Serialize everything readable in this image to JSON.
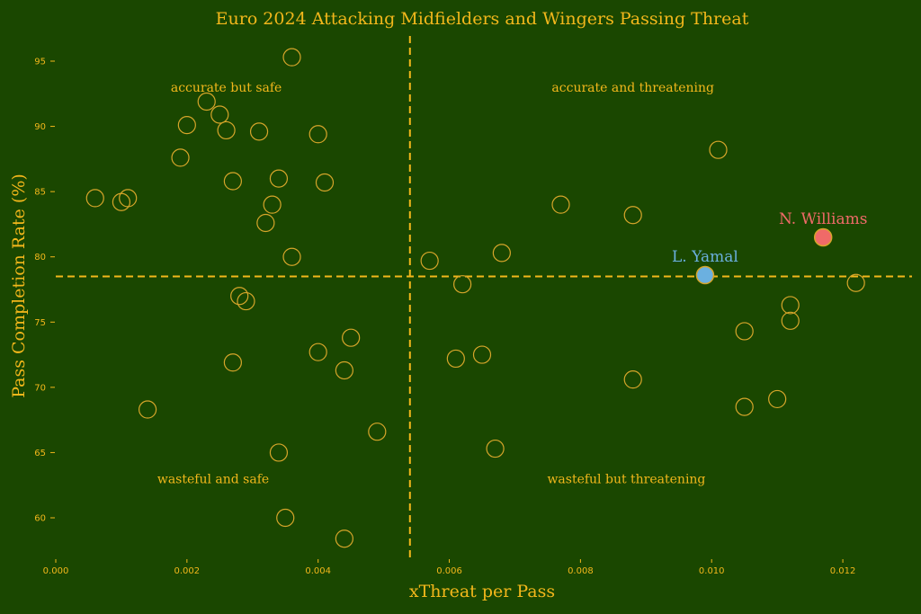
{
  "chart_data": {
    "type": "scatter",
    "title": "Euro 2024 Attacking Midfielders and Wingers Passing Threat",
    "xlabel": "xThreat per Pass",
    "ylabel": "Pass Completion Rate (%)",
    "xlim": [
      0,
      0.013
    ],
    "ylim": [
      56.5,
      97
    ],
    "xticks": [
      0.0,
      0.002,
      0.004,
      0.006,
      0.008,
      0.01,
      0.012
    ],
    "xtick_labels": [
      "0.000",
      "0.002",
      "0.004",
      "0.006",
      "0.008",
      "0.010",
      "0.012"
    ],
    "yticks": [
      60,
      65,
      70,
      75,
      80,
      85,
      90,
      95
    ],
    "ytick_labels": [
      "60",
      "65",
      "70",
      "75",
      "80",
      "85",
      "90",
      "95"
    ],
    "ref_lines": {
      "x": 0.0054,
      "y": 78.5
    },
    "quadrant_labels": [
      {
        "text": "accurate but safe",
        "x": 0.0026,
        "y": 93.0
      },
      {
        "text": "accurate and threatening",
        "x": 0.0088,
        "y": 93.0
      },
      {
        "text": "wasteful and safe",
        "x": 0.0024,
        "y": 63.0
      },
      {
        "text": "wasteful but threatening",
        "x": 0.0087,
        "y": 63.0
      }
    ],
    "points": [
      [
        0.0036,
        95.3
      ],
      [
        0.0023,
        91.9
      ],
      [
        0.0025,
        90.9
      ],
      [
        0.002,
        90.1
      ],
      [
        0.0026,
        89.7
      ],
      [
        0.0031,
        89.6
      ],
      [
        0.004,
        89.4
      ],
      [
        0.0019,
        87.6
      ],
      [
        0.0027,
        85.8
      ],
      [
        0.0034,
        86.0
      ],
      [
        0.0041,
        85.7
      ],
      [
        0.0006,
        84.5
      ],
      [
        0.0011,
        84.5
      ],
      [
        0.001,
        84.2
      ],
      [
        0.0033,
        84.0
      ],
      [
        0.0032,
        82.6
      ],
      [
        0.0036,
        80.0
      ],
      [
        0.0028,
        77.0
      ],
      [
        0.0029,
        76.6
      ],
      [
        0.0045,
        73.8
      ],
      [
        0.004,
        72.7
      ],
      [
        0.0027,
        71.9
      ],
      [
        0.0044,
        71.3
      ],
      [
        0.0014,
        68.3
      ],
      [
        0.0049,
        66.6
      ],
      [
        0.0034,
        65.0
      ],
      [
        0.0035,
        60.0
      ],
      [
        0.0044,
        58.4
      ],
      [
        0.0101,
        88.2
      ],
      [
        0.0077,
        84.0
      ],
      [
        0.0088,
        83.2
      ],
      [
        0.0068,
        80.3
      ],
      [
        0.0057,
        79.7
      ],
      [
        0.0062,
        77.9
      ],
      [
        0.0122,
        78.0
      ],
      [
        0.0112,
        76.3
      ],
      [
        0.0112,
        75.1
      ],
      [
        0.0105,
        74.3
      ],
      [
        0.0065,
        72.5
      ],
      [
        0.0061,
        72.2
      ],
      [
        0.0088,
        70.6
      ],
      [
        0.011,
        69.1
      ],
      [
        0.0105,
        68.5
      ],
      [
        0.0067,
        65.3
      ]
    ],
    "highlights": [
      {
        "name": "N. Williams",
        "x": 0.0117,
        "y": 81.5,
        "color": "#f06a68"
      },
      {
        "name": "L. Yamal",
        "x": 0.0099,
        "y": 78.6,
        "color": "#6bb0e0"
      }
    ],
    "colors": {
      "background": "#1a4700",
      "text": "#f2b71b",
      "points": "#d6a52a"
    }
  }
}
